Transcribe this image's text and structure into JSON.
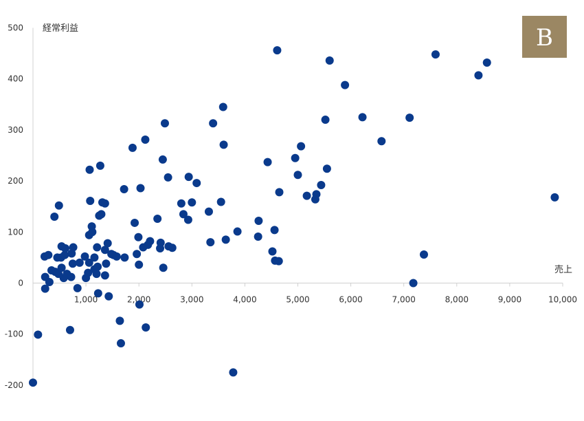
{
  "badge": {
    "label": "B",
    "color": "#9b8763"
  },
  "chart_data": {
    "type": "scatter",
    "title": "",
    "xlabel": "売上",
    "ylabel": "経常利益",
    "xlim": [
      0,
      10000
    ],
    "ylim": [
      -200,
      500
    ],
    "grid": false,
    "marker_color": "#0a3a8c",
    "x_ticks": [
      {
        "value": 1000,
        "label": "1,000"
      },
      {
        "value": 2000,
        "label": "2,000"
      },
      {
        "value": 3000,
        "label": "3,000"
      },
      {
        "value": 4000,
        "label": "4,000"
      },
      {
        "value": 5000,
        "label": "5,000"
      },
      {
        "value": 6000,
        "label": "6,000"
      },
      {
        "value": 7000,
        "label": "7,000"
      },
      {
        "value": 8000,
        "label": "8,000"
      },
      {
        "value": 9000,
        "label": "9,000"
      },
      {
        "value": 10000,
        "label": "10,000"
      }
    ],
    "y_ticks": [
      {
        "value": 500,
        "label": "500"
      },
      {
        "value": 400,
        "label": "400"
      },
      {
        "value": 300,
        "label": "300"
      },
      {
        "value": 200,
        "label": "200"
      },
      {
        "value": 100,
        "label": "100"
      },
      {
        "value": 0,
        "label": "0"
      },
      {
        "value": -100,
        "label": "-100"
      },
      {
        "value": -200,
        "label": "-200"
      }
    ],
    "points": [
      [
        0,
        -195
      ],
      [
        95,
        -101
      ],
      [
        220,
        52
      ],
      [
        230,
        12
      ],
      [
        230,
        -11
      ],
      [
        290,
        55
      ],
      [
        310,
        2
      ],
      [
        350,
        25
      ],
      [
        405,
        130
      ],
      [
        420,
        22
      ],
      [
        460,
        50
      ],
      [
        480,
        18
      ],
      [
        490,
        152
      ],
      [
        530,
        50
      ],
      [
        540,
        30
      ],
      [
        540,
        72
      ],
      [
        580,
        10
      ],
      [
        600,
        55
      ],
      [
        610,
        68
      ],
      [
        640,
        18
      ],
      [
        700,
        -92
      ],
      [
        720,
        12
      ],
      [
        730,
        58
      ],
      [
        750,
        38
      ],
      [
        760,
        70
      ],
      [
        840,
        -10
      ],
      [
        880,
        40
      ],
      [
        980,
        52
      ],
      [
        1000,
        10
      ],
      [
        1040,
        20
      ],
      [
        1060,
        40
      ],
      [
        1060,
        94
      ],
      [
        1070,
        222
      ],
      [
        1080,
        161
      ],
      [
        1110,
        111
      ],
      [
        1120,
        100
      ],
      [
        1160,
        27
      ],
      [
        1160,
        50
      ],
      [
        1200,
        18
      ],
      [
        1210,
        70
      ],
      [
        1220,
        32
      ],
      [
        1230,
        -20
      ],
      [
        1250,
        132
      ],
      [
        1270,
        230
      ],
      [
        1290,
        135
      ],
      [
        1310,
        158
      ],
      [
        1360,
        156
      ],
      [
        1360,
        65
      ],
      [
        1360,
        15
      ],
      [
        1380,
        38
      ],
      [
        1410,
        78
      ],
      [
        1430,
        -26
      ],
      [
        1480,
        57
      ],
      [
        1520,
        55
      ],
      [
        1580,
        52
      ],
      [
        1640,
        -74
      ],
      [
        1660,
        -118
      ],
      [
        1720,
        184
      ],
      [
        1730,
        50
      ],
      [
        1880,
        265
      ],
      [
        1920,
        118
      ],
      [
        1960,
        57
      ],
      [
        1990,
        90
      ],
      [
        2000,
        36
      ],
      [
        2010,
        -42
      ],
      [
        2030,
        186
      ],
      [
        2080,
        70
      ],
      [
        2120,
        281
      ],
      [
        2130,
        -87
      ],
      [
        2170,
        75
      ],
      [
        2210,
        82
      ],
      [
        2350,
        126
      ],
      [
        2400,
        68
      ],
      [
        2410,
        79
      ],
      [
        2450,
        242
      ],
      [
        2460,
        30
      ],
      [
        2490,
        313
      ],
      [
        2550,
        207
      ],
      [
        2560,
        72
      ],
      [
        2630,
        69
      ],
      [
        2800,
        156
      ],
      [
        2840,
        135
      ],
      [
        2930,
        124
      ],
      [
        2940,
        208
      ],
      [
        3000,
        158
      ],
      [
        3090,
        196
      ],
      [
        3320,
        140
      ],
      [
        3350,
        80
      ],
      [
        3400,
        313
      ],
      [
        3550,
        159
      ],
      [
        3590,
        345
      ],
      [
        3600,
        271
      ],
      [
        3640,
        85
      ],
      [
        3780,
        -175
      ],
      [
        3860,
        101
      ],
      [
        4250,
        91
      ],
      [
        4260,
        122
      ],
      [
        4430,
        237
      ],
      [
        4520,
        62
      ],
      [
        4560,
        104
      ],
      [
        4570,
        44
      ],
      [
        4610,
        456
      ],
      [
        4640,
        43
      ],
      [
        4650,
        178
      ],
      [
        4950,
        245
      ],
      [
        5000,
        212
      ],
      [
        5060,
        268
      ],
      [
        5170,
        171
      ],
      [
        5330,
        164
      ],
      [
        5350,
        174
      ],
      [
        5440,
        192
      ],
      [
        5520,
        320
      ],
      [
        5550,
        224
      ],
      [
        5600,
        436
      ],
      [
        5890,
        388
      ],
      [
        6220,
        325
      ],
      [
        6580,
        278
      ],
      [
        7110,
        324
      ],
      [
        7180,
        0
      ],
      [
        7380,
        56
      ],
      [
        7600,
        448
      ],
      [
        8410,
        407
      ],
      [
        8570,
        432
      ],
      [
        9850,
        168
      ]
    ]
  }
}
